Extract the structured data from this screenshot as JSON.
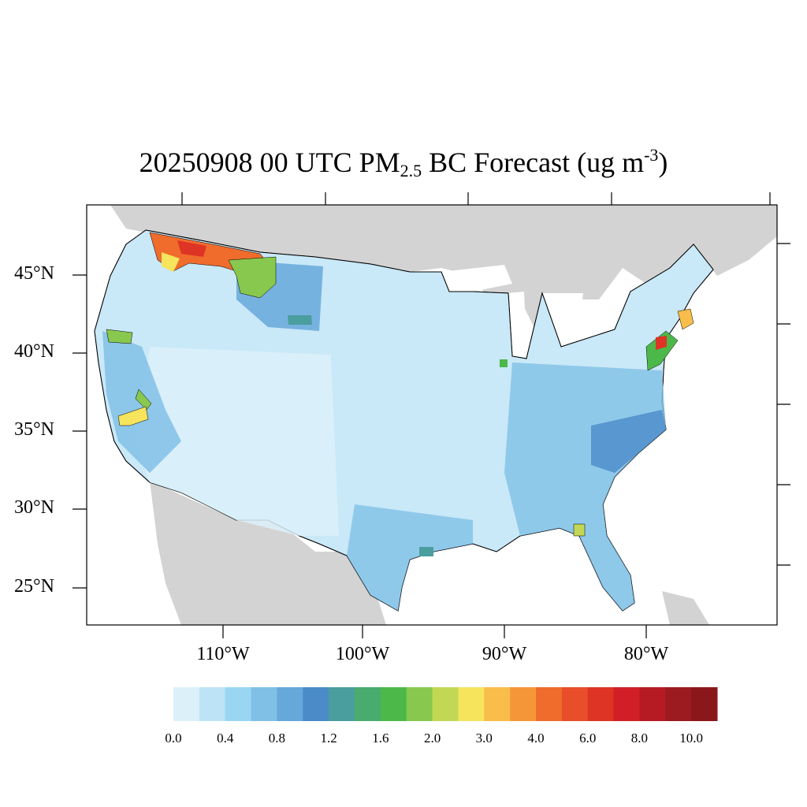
{
  "title": {
    "prefix": "20250908 00 UTC PM",
    "subscript": "2.5",
    "middle": " BC Forecast (ug m",
    "superscript": "-3",
    "suffix": ")"
  },
  "map": {
    "projection": "lambert-conformal",
    "region": "CONUS counties",
    "land_outside_color": "#d3d3d3",
    "water_color": "#ffffff",
    "county_border_color": "#000000",
    "lat_labels": [
      "45°N",
      "40°N",
      "35°N",
      "30°N",
      "25°N"
    ],
    "lon_labels": [
      "110°W",
      "100°W",
      "90°W",
      "80°W"
    ],
    "hotspots": [
      {
        "area": "northern Idaho / western Montana",
        "level": "4.0-8.0"
      },
      {
        "area": "Montana plains",
        "level": "1.6-2.0"
      },
      {
        "area": "northeast corridor (NYC / Philadelphia)",
        "level": "6.0-10.0"
      },
      {
        "area": "southern California",
        "level": "2.0-3.0"
      },
      {
        "area": "northern California",
        "level": "1.6-2.0"
      }
    ]
  },
  "colorbar": {
    "colors": [
      "#dcf0fa",
      "#bde3f6",
      "#9ad6f2",
      "#81c0e6",
      "#66a8da",
      "#4a8bc8",
      "#4a9e9e",
      "#4aab6e",
      "#4cb84a",
      "#88c84e",
      "#c2d855",
      "#f5e45c",
      "#f8bd4a",
      "#f59738",
      "#ef6c2c",
      "#e84e2a",
      "#de3426",
      "#d21f27",
      "#b61b23",
      "#9b1b20",
      "#8a181b"
    ],
    "labels": [
      "0.0",
      "0.4",
      "0.8",
      "1.2",
      "1.6",
      "2.0",
      "3.0",
      "4.0",
      "6.0",
      "8.0",
      "10.0"
    ]
  }
}
